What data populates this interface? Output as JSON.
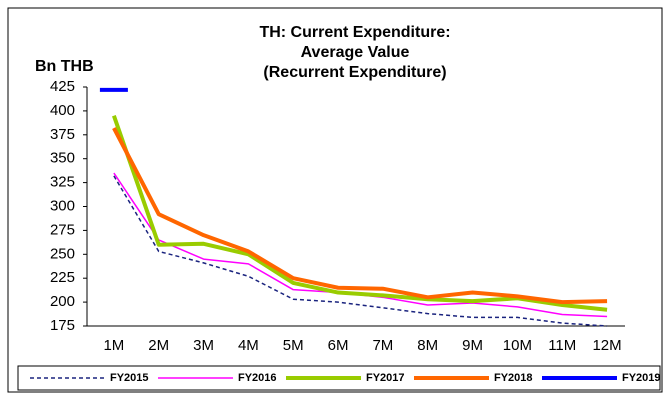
{
  "chart_data": {
    "type": "line",
    "title": [
      "TH: Current Expenditure:",
      "Average Value",
      "(Recurrent Expenditure)"
    ],
    "y_label": "Bn THB",
    "categories": [
      "1M",
      "2M",
      "3M",
      "4M",
      "5M",
      "6M",
      "7M",
      "8M",
      "9M",
      "10M",
      "11M",
      "12M"
    ],
    "series": [
      {
        "name": "FY2015",
        "color": "#1a237e",
        "width": 1.5,
        "dash": true,
        "values": [
          332,
          253,
          241,
          227,
          203,
          200,
          194,
          188,
          184,
          184,
          178,
          175
        ]
      },
      {
        "name": "FY2016",
        "color": "#ff00ff",
        "width": 1.5,
        "dash": false,
        "values": [
          335,
          265,
          245,
          240,
          213,
          210,
          205,
          197,
          199,
          195,
          187,
          185
        ]
      },
      {
        "name": "FY2017",
        "color": "#99cc00",
        "width": 4,
        "dash": false,
        "values": [
          395,
          260,
          261,
          250,
          220,
          210,
          207,
          203,
          201,
          204,
          197,
          192
        ]
      },
      {
        "name": "FY2018",
        "color": "#ff6600",
        "width": 4,
        "dash": false,
        "values": [
          382,
          292,
          270,
          253,
          225,
          215,
          214,
          205,
          210,
          206,
          200,
          201
        ]
      },
      {
        "name": "FY2019",
        "color": "#0000ff",
        "width": 4,
        "dash": false,
        "values": [
          422,
          null,
          null,
          null,
          null,
          null,
          null,
          null,
          null,
          null,
          null,
          null
        ]
      }
    ],
    "ylim": [
      175,
      425
    ],
    "yticks": [
      175,
      200,
      225,
      250,
      275,
      300,
      325,
      350,
      375,
      400,
      425
    ],
    "grid": false,
    "legend": "bottom"
  }
}
